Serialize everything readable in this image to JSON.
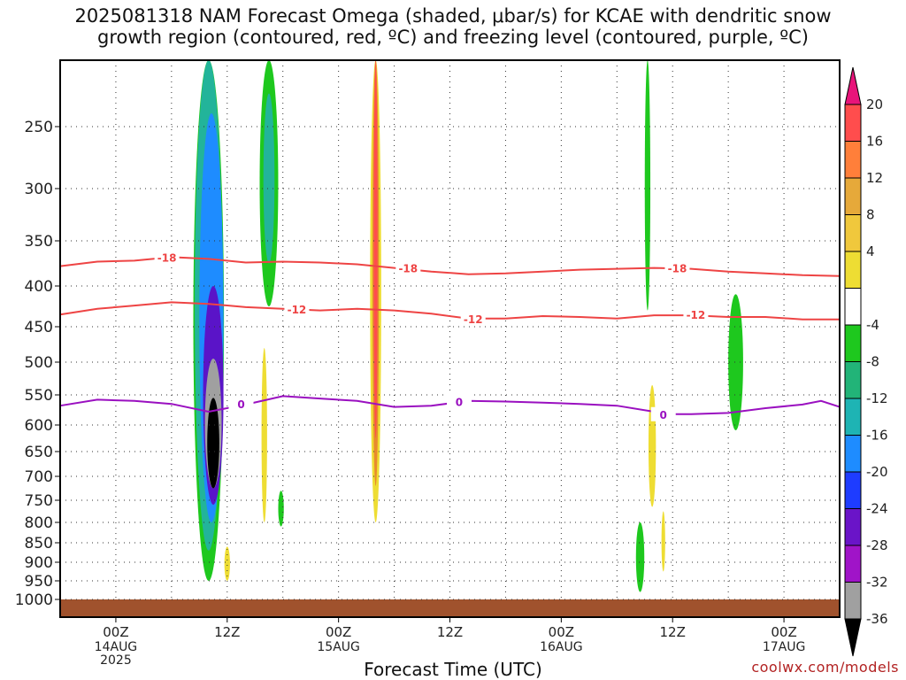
{
  "title_line1": "2025081318 NAM Forecast Omega (shaded, μbar/s) for KCAE with dendritic snow",
  "title_line2": "growth region (contoured, red, ºC) and freezing level (contoured, purple, ºC)",
  "credit": "coolwx.com/models",
  "chart_data": {
    "type": "heatmap",
    "xlabel": "Forecast Time (UTC)",
    "ylabel": "",
    "x_ticks": [
      {
        "hours": 0,
        "label": "00Z",
        "sub1": "14AUG",
        "sub2": "2025"
      },
      {
        "hours": 12,
        "label": "12Z",
        "sub1": "",
        "sub2": ""
      },
      {
        "hours": 24,
        "label": "00Z",
        "sub1": "15AUG",
        "sub2": ""
      },
      {
        "hours": 36,
        "label": "12Z",
        "sub1": "",
        "sub2": ""
      },
      {
        "hours": 48,
        "label": "00Z",
        "sub1": "16AUG",
        "sub2": ""
      },
      {
        "hours": 60,
        "label": "12Z",
        "sub1": "",
        "sub2": ""
      },
      {
        "hours": 72,
        "label": "00Z",
        "sub1": "17AUG",
        "sub2": ""
      }
    ],
    "x_range_hours": [
      -6,
      78
    ],
    "y_ticks": [
      250,
      300,
      350,
      400,
      450,
      500,
      550,
      600,
      650,
      700,
      750,
      800,
      850,
      900,
      950,
      1000
    ],
    "y_range_hpa": [
      200,
      1000
    ],
    "colorbar": {
      "labels": [
        "20",
        "16",
        "12",
        "8",
        "4",
        "-4",
        "-8",
        "-12",
        "-16",
        "-20",
        "-24",
        "-28",
        "-32",
        "-36"
      ],
      "colors": [
        "#ff4d4d",
        "#ff7f3a",
        "#e6a93a",
        "#f0c83c",
        "#eedd33",
        "#ffffff",
        "#1ec81e",
        "#22b478",
        "#1eb4b4",
        "#1e8cff",
        "#1e3cff",
        "#6a14c8",
        "#a014c8",
        "#a0a0a0"
      ],
      "top_color": "#e8147a",
      "bottom_color": "#000000"
    },
    "contours": [
      {
        "label": "-18",
        "color": "#ee4444",
        "points": [
          [
            -6,
            378
          ],
          [
            -2,
            373
          ],
          [
            2,
            372
          ],
          [
            6,
            368
          ],
          [
            10,
            370
          ],
          [
            14,
            374
          ],
          [
            18,
            373
          ],
          [
            22,
            374
          ],
          [
            26,
            376
          ],
          [
            30,
            380
          ],
          [
            34,
            384
          ],
          [
            38,
            387
          ],
          [
            42,
            386
          ],
          [
            46,
            384
          ],
          [
            50,
            382
          ],
          [
            54,
            381
          ],
          [
            58,
            380
          ],
          [
            62,
            381
          ],
          [
            66,
            384
          ],
          [
            70,
            386
          ],
          [
            74,
            388
          ],
          [
            78,
            389
          ]
        ],
        "label_at": [
          [
            5.5,
            368
          ],
          [
            31.5,
            380
          ],
          [
            60.5,
            380
          ]
        ]
      },
      {
        "label": "-12",
        "color": "#ee4444",
        "points": [
          [
            -6,
            435
          ],
          [
            -2,
            428
          ],
          [
            2,
            424
          ],
          [
            6,
            420
          ],
          [
            10,
            422
          ],
          [
            14,
            426
          ],
          [
            18,
            428
          ],
          [
            22,
            430
          ],
          [
            26,
            428
          ],
          [
            30,
            430
          ],
          [
            34,
            434
          ],
          [
            38,
            440
          ],
          [
            42,
            440
          ],
          [
            46,
            437
          ],
          [
            50,
            438
          ],
          [
            54,
            440
          ],
          [
            58,
            436
          ],
          [
            62,
            436
          ],
          [
            66,
            438
          ],
          [
            70,
            438
          ],
          [
            74,
            441
          ],
          [
            78,
            441
          ]
        ],
        "label_at": [
          [
            19.5,
            428
          ],
          [
            38.5,
            440
          ],
          [
            62.5,
            435
          ]
        ]
      },
      {
        "label": "0",
        "color": "#9a10c0",
        "points": [
          [
            -6,
            568
          ],
          [
            -2,
            558
          ],
          [
            2,
            560
          ],
          [
            6,
            565
          ],
          [
            10,
            578
          ],
          [
            14,
            566
          ],
          [
            18,
            552
          ],
          [
            22,
            556
          ],
          [
            26,
            560
          ],
          [
            30,
            570
          ],
          [
            34,
            568
          ],
          [
            38,
            560
          ],
          [
            42,
            561
          ],
          [
            46,
            563
          ],
          [
            50,
            565
          ],
          [
            54,
            568
          ],
          [
            58,
            578
          ],
          [
            60,
            582
          ],
          [
            62,
            582
          ],
          [
            66,
            580
          ],
          [
            70,
            572
          ],
          [
            74,
            566
          ],
          [
            76,
            560
          ],
          [
            78,
            570
          ]
        ],
        "label_at": [
          [
            13.5,
            565
          ],
          [
            37,
            561
          ],
          [
            59,
            582
          ]
        ]
      }
    ],
    "omega_cells": [
      {
        "hours": 10.5,
        "p": 640,
        "dh": 1.3,
        "dp": 170,
        "value": -36
      },
      {
        "hours": 10.5,
        "p": 610,
        "dh": 1.8,
        "dp": 230,
        "value": -32
      },
      {
        "hours": 10.5,
        "p": 580,
        "dh": 2.2,
        "dp": 360,
        "value": -28
      },
      {
        "hours": 10.3,
        "p": 520,
        "dh": 2.6,
        "dp": 560,
        "value": -20
      },
      {
        "hours": 10.0,
        "p": 460,
        "dh": 3.0,
        "dp": 820,
        "value": -12
      },
      {
        "hours": 10.0,
        "p": 470,
        "dh": 3.3,
        "dp": 960,
        "value": -8
      },
      {
        "hours": 16.5,
        "p": 300,
        "dh": 2.0,
        "dp": 250,
        "value": -8
      },
      {
        "hours": 16.5,
        "p": 300,
        "dh": 1.2,
        "dp": 150,
        "value": -12
      },
      {
        "hours": 28.0,
        "p": 450,
        "dh": 1.2,
        "dp": 700,
        "value": 4
      },
      {
        "hours": 28.0,
        "p": 420,
        "dh": 0.7,
        "dp": 600,
        "value": 12
      },
      {
        "hours": 28.0,
        "p": 400,
        "dh": 0.4,
        "dp": 450,
        "value": 16
      },
      {
        "hours": 16.0,
        "p": 640,
        "dh": 0.6,
        "dp": 320,
        "value": 4
      },
      {
        "hours": 12.0,
        "p": 905,
        "dh": 0.6,
        "dp": 90,
        "value": 4
      },
      {
        "hours": 17.8,
        "p": 770,
        "dh": 0.6,
        "dp": 80,
        "value": -8
      },
      {
        "hours": 57.3,
        "p": 315,
        "dh": 0.6,
        "dp": 230,
        "value": -8
      },
      {
        "hours": 56.5,
        "p": 890,
        "dh": 0.9,
        "dp": 180,
        "value": -8
      },
      {
        "hours": 57.8,
        "p": 650,
        "dh": 0.8,
        "dp": 230,
        "value": 4
      },
      {
        "hours": 66.8,
        "p": 510,
        "dh": 1.6,
        "dp": 200,
        "value": -8
      },
      {
        "hours": 59.0,
        "p": 850,
        "dh": 0.4,
        "dp": 150,
        "value": 4
      }
    ]
  }
}
